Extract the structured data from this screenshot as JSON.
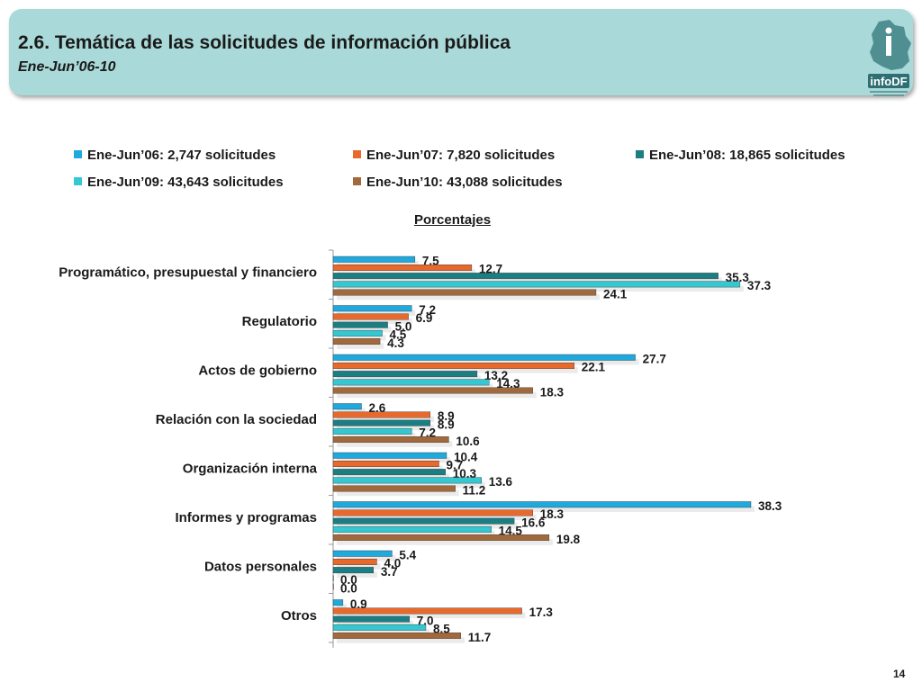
{
  "header": {
    "title": "2.6. Temática de las solicitudes de información pública",
    "subtitle": "Ene-Jun’06-10",
    "logo_text": "infoDF"
  },
  "unit_label": "Porcentajes",
  "page_number": "14",
  "chart_data": {
    "type": "bar",
    "orientation": "horizontal",
    "categories": [
      "Programático, presupuestal y financiero",
      "Regulatorio",
      "Actos de gobierno",
      "Relación con la sociedad",
      "Organización interna",
      "Informes y programas",
      "Datos personales",
      "Otros"
    ],
    "series": [
      {
        "name": "Ene-Jun’06: 2,747 solicitudes",
        "color": "#1fa9dd",
        "values": [
          7.5,
          7.2,
          27.7,
          2.6,
          10.4,
          38.3,
          5.4,
          0.9
        ]
      },
      {
        "name": "Ene-Jun’07: 7,820 solicitudes",
        "color": "#e8692c",
        "values": [
          12.7,
          6.9,
          22.1,
          8.9,
          9.7,
          18.3,
          4.0,
          17.3
        ]
      },
      {
        "name": "Ene-Jun’08: 18,865 solicitudes",
        "color": "#1b7e83",
        "values": [
          35.3,
          5.0,
          13.2,
          8.9,
          10.3,
          16.6,
          3.7,
          7.0
        ]
      },
      {
        "name": "Ene-Jun’09: 43,643 solicitudes",
        "color": "#33c8d2",
        "values": [
          37.3,
          4.5,
          14.3,
          7.2,
          13.6,
          14.5,
          0.0,
          8.5
        ]
      },
      {
        "name": "Ene-Jun’10: 43,088 solicitudes",
        "color": "#a26a3c",
        "values": [
          24.1,
          4.3,
          18.3,
          10.6,
          11.2,
          19.8,
          0.0,
          11.7
        ]
      }
    ],
    "xlim": [
      0,
      40
    ],
    "legend_position": "top",
    "grid": false
  }
}
